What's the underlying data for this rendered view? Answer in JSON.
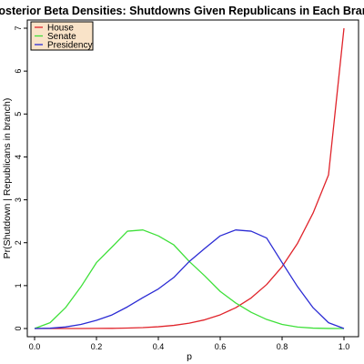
{
  "chart_data": {
    "type": "line",
    "title": "Posterior Beta Densities: Shutdowns Given Republicans in Each Branch",
    "xlabel": "p",
    "ylabel": "Pr(Shutdown | Republicans in branch)",
    "xlim": [
      0,
      1
    ],
    "ylim": [
      0,
      7
    ],
    "x_ticks": [
      "0.0",
      "0.2",
      "0.4",
      "0.6",
      "0.8",
      "1.0"
    ],
    "y_ticks": [
      "0",
      "1",
      "2",
      "3",
      "4",
      "5",
      "6",
      "7"
    ],
    "grid": false,
    "legend_position": "top-left",
    "legend_background": "#f9e3c8",
    "series": [
      {
        "name": "House",
        "color": "#e0242b",
        "x": [
          0,
          0.05,
          0.1,
          0.15,
          0.2,
          0.25,
          0.3,
          0.35,
          0.4,
          0.45,
          0.5,
          0.55,
          0.6,
          0.65,
          0.7,
          0.75,
          0.8,
          0.85,
          0.9,
          0.95,
          1.0
        ],
        "y": [
          0,
          0,
          0,
          0,
          0.002,
          0.004,
          0.01,
          0.021,
          0.041,
          0.073,
          0.125,
          0.203,
          0.319,
          0.484,
          0.713,
          1.025,
          1.442,
          1.987,
          2.689,
          3.58,
          7.0
        ]
      },
      {
        "name": "Senate",
        "color": "#3fe03a",
        "x": [
          0,
          0.05,
          0.1,
          0.15,
          0.2,
          0.25,
          0.3,
          0.35,
          0.4,
          0.45,
          0.5,
          0.55,
          0.6,
          0.65,
          0.7,
          0.75,
          0.8,
          0.85,
          0.9,
          0.95,
          1.0
        ],
        "y": [
          0,
          0.135,
          0.486,
          0.975,
          1.536,
          1.898,
          2.268,
          2.298,
          2.16,
          1.949,
          1.563,
          1.226,
          0.864,
          0.595,
          0.378,
          0.211,
          0.096,
          0.034,
          0.009,
          0.001,
          0
        ]
      },
      {
        "name": "Presidency",
        "color": "#2b2bd4",
        "x": [
          0,
          0.05,
          0.1,
          0.15,
          0.2,
          0.25,
          0.3,
          0.35,
          0.4,
          0.45,
          0.5,
          0.55,
          0.6,
          0.65,
          0.7,
          0.75,
          0.8,
          0.85,
          0.9,
          0.95,
          1.0
        ],
        "y": [
          0,
          0.007,
          0.036,
          0.095,
          0.192,
          0.316,
          0.504,
          0.719,
          0.922,
          1.19,
          1.563,
          1.867,
          2.16,
          2.298,
          2.268,
          2.109,
          1.536,
          0.975,
          0.486,
          0.135,
          0
        ]
      }
    ]
  }
}
